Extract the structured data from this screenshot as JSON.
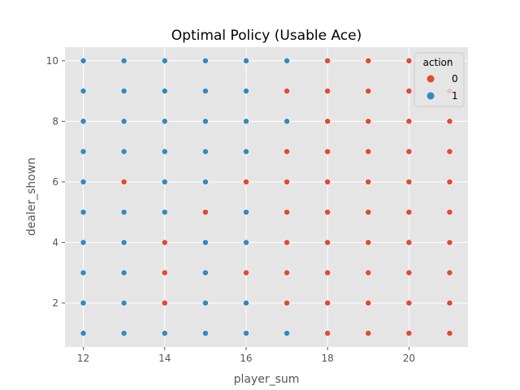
{
  "chart_data": {
    "type": "scatter",
    "title": "Optimal Policy (Usable Ace)",
    "xlabel": "player_sum",
    "ylabel": "dealer_shown",
    "xlim": [
      11.55,
      21.45
    ],
    "ylim": [
      0.55,
      10.45
    ],
    "xticks": [
      12,
      14,
      16,
      18,
      20
    ],
    "yticks": [
      2,
      4,
      6,
      8,
      10
    ],
    "grid": true,
    "legend": {
      "title": "action",
      "placement": "top-right"
    },
    "hue_colors": {
      "0": "#E24A33",
      "1": "#348ABD"
    },
    "series": [
      {
        "name": "0",
        "points": [
          [
            18,
            10
          ],
          [
            19,
            10
          ],
          [
            20,
            10
          ],
          [
            21,
            10
          ],
          [
            17,
            9
          ],
          [
            18,
            9
          ],
          [
            19,
            9
          ],
          [
            20,
            9
          ],
          [
            21,
            9
          ],
          [
            18,
            8
          ],
          [
            19,
            8
          ],
          [
            20,
            8
          ],
          [
            21,
            8
          ],
          [
            17,
            7
          ],
          [
            18,
            7
          ],
          [
            19,
            7
          ],
          [
            20,
            7
          ],
          [
            21,
            7
          ],
          [
            13,
            6
          ],
          [
            16,
            6
          ],
          [
            17,
            6
          ],
          [
            18,
            6
          ],
          [
            19,
            6
          ],
          [
            20,
            6
          ],
          [
            21,
            6
          ],
          [
            15,
            5
          ],
          [
            17,
            5
          ],
          [
            18,
            5
          ],
          [
            19,
            5
          ],
          [
            20,
            5
          ],
          [
            21,
            5
          ],
          [
            14,
            4
          ],
          [
            17,
            4
          ],
          [
            18,
            4
          ],
          [
            19,
            4
          ],
          [
            20,
            4
          ],
          [
            21,
            4
          ],
          [
            14,
            3
          ],
          [
            16,
            3
          ],
          [
            17,
            3
          ],
          [
            18,
            3
          ],
          [
            19,
            3
          ],
          [
            20,
            3
          ],
          [
            21,
            3
          ],
          [
            14,
            2
          ],
          [
            17,
            2
          ],
          [
            18,
            2
          ],
          [
            19,
            2
          ],
          [
            20,
            2
          ],
          [
            21,
            2
          ],
          [
            18,
            1
          ],
          [
            19,
            1
          ],
          [
            20,
            1
          ],
          [
            21,
            1
          ]
        ]
      },
      {
        "name": "1",
        "points": [
          [
            12,
            10
          ],
          [
            13,
            10
          ],
          [
            14,
            10
          ],
          [
            15,
            10
          ],
          [
            16,
            10
          ],
          [
            17,
            10
          ],
          [
            12,
            9
          ],
          [
            13,
            9
          ],
          [
            14,
            9
          ],
          [
            15,
            9
          ],
          [
            16,
            9
          ],
          [
            12,
            8
          ],
          [
            13,
            8
          ],
          [
            14,
            8
          ],
          [
            15,
            8
          ],
          [
            16,
            8
          ],
          [
            17,
            8
          ],
          [
            12,
            7
          ],
          [
            13,
            7
          ],
          [
            14,
            7
          ],
          [
            15,
            7
          ],
          [
            16,
            7
          ],
          [
            12,
            6
          ],
          [
            14,
            6
          ],
          [
            15,
            6
          ],
          [
            12,
            5
          ],
          [
            13,
            5
          ],
          [
            14,
            5
          ],
          [
            16,
            5
          ],
          [
            12,
            4
          ],
          [
            13,
            4
          ],
          [
            15,
            4
          ],
          [
            16,
            4
          ],
          [
            12,
            3
          ],
          [
            13,
            3
          ],
          [
            15,
            3
          ],
          [
            12,
            2
          ],
          [
            13,
            2
          ],
          [
            15,
            2
          ],
          [
            16,
            2
          ],
          [
            12,
            1
          ],
          [
            13,
            1
          ],
          [
            14,
            1
          ],
          [
            15,
            1
          ],
          [
            16,
            1
          ],
          [
            17,
            1
          ]
        ]
      }
    ]
  }
}
